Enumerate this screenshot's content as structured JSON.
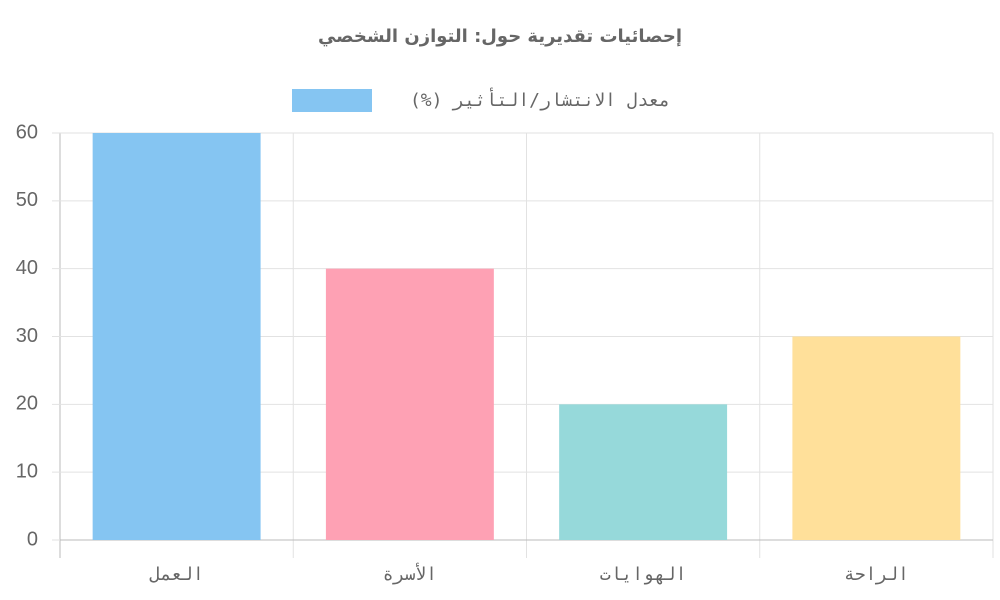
{
  "chart_data": {
    "type": "bar",
    "title": "إحصائيات تقديرية حول: التوازن الشخصي",
    "categories": [
      "العمل",
      "الأسرة",
      "الهوايات",
      "الراحة"
    ],
    "series": [
      {
        "name": "معدل الانتشار/التأثير (%)",
        "colors": [
          "#85c5f2",
          "#fea1b4",
          "#96d9da",
          "#ffe09a"
        ],
        "values": [
          60,
          40,
          20,
          30
        ]
      }
    ],
    "ylim": [
      0,
      60
    ],
    "yticks": [
      0,
      10,
      20,
      30,
      40,
      50,
      60
    ],
    "grid": true,
    "legend": "top"
  }
}
